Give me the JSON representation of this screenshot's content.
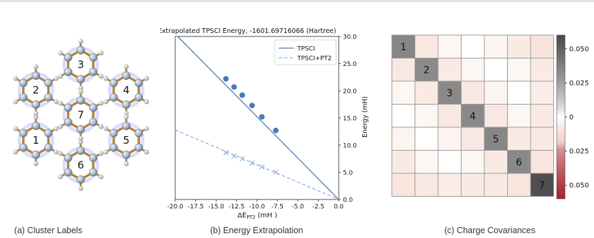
{
  "captions": {
    "a": "(a) Cluster Labels",
    "b": "(b) Energy Extrapolation",
    "c": "(c) Charge Covariances"
  },
  "molecule": {
    "cluster_labels": [
      "1",
      "2",
      "3",
      "4",
      "5",
      "6",
      "7"
    ],
    "colors": {
      "bond": "#b5833a",
      "atom": "#a9b7c6",
      "hydrogen": "#d9d9d9",
      "glow": "#8fa3ff"
    }
  },
  "chart_data": [
    {
      "type": "line",
      "title": "Extrapolated TPSCI Energy, -1601.69716066 (Hartree)",
      "xlabel": "ΔE_PT2 (mH )",
      "ylabel": "Energy (mH)",
      "xlim": [
        -20.0,
        0.0
      ],
      "ylim": [
        0.0,
        30.0
      ],
      "x_ticks": [
        "-20.0",
        "-17.5",
        "-15.0",
        "-12.5",
        "-10.0",
        "-7.5",
        "-5.0",
        "-2.5",
        "0.0"
      ],
      "y_ticks": [
        "0.0",
        "5.0",
        "10.0",
        "15.0",
        "20.0",
        "25.0",
        "30.0"
      ],
      "legend": "top-right",
      "grid": false,
      "series": [
        {
          "name": "TPSCI",
          "style": "solid",
          "marker": "circle",
          "color": "#4a78b4",
          "fit": {
            "x": [
              -19.7,
              0.0
            ],
            "y": [
              30.0,
              0.0
            ]
          },
          "x": [
            -13.8,
            -12.8,
            -11.8,
            -10.6,
            -9.4,
            -7.7
          ],
          "y": [
            22.2,
            20.7,
            19.2,
            17.3,
            15.2,
            12.7
          ]
        },
        {
          "name": "TPSCI+PT2",
          "style": "dashed",
          "marker": "x",
          "color": "#8fb2dc",
          "fit": {
            "x": [
              -20.0,
              0.0
            ],
            "y": [
              12.8,
              0.0
            ]
          },
          "x": [
            -13.8,
            -12.8,
            -11.8,
            -10.6,
            -9.4,
            -7.7
          ],
          "y": [
            8.6,
            8.0,
            7.5,
            6.7,
            6.0,
            5.0
          ]
        }
      ]
    },
    {
      "type": "heatmap",
      "title": "",
      "rows": 7,
      "cols": 7,
      "cell_labels": [
        "1",
        "2",
        "3",
        "4",
        "5",
        "6",
        "7"
      ],
      "values": [
        [
          0.035,
          -0.008,
          -0.002,
          0.0,
          -0.003,
          -0.007,
          -0.01
        ],
        [
          -0.008,
          0.033,
          -0.007,
          -0.002,
          0.0,
          -0.002,
          -0.007
        ],
        [
          -0.002,
          -0.007,
          0.034,
          -0.008,
          -0.003,
          0.0,
          -0.006
        ],
        [
          0.0,
          -0.002,
          -0.008,
          0.034,
          -0.008,
          -0.002,
          -0.007
        ],
        [
          -0.003,
          0.0,
          -0.003,
          -0.008,
          0.035,
          -0.007,
          -0.007
        ],
        [
          -0.007,
          -0.002,
          0.0,
          -0.002,
          -0.007,
          0.034,
          -0.009
        ],
        [
          -0.009,
          -0.008,
          -0.006,
          -0.007,
          -0.007,
          -0.009,
          0.058
        ]
      ],
      "colorbar": {
        "ticks": [
          "0.050",
          "0.025",
          "0",
          "0.025",
          "0.050"
        ],
        "tick_values": [
          0.05,
          0.025,
          0.0,
          -0.025,
          -0.05
        ],
        "range": [
          -0.06,
          0.06
        ],
        "colors": {
          "positive": "#4a4a4a",
          "zero": "#ffffff",
          "negative": "#a8202a"
        }
      }
    }
  ]
}
